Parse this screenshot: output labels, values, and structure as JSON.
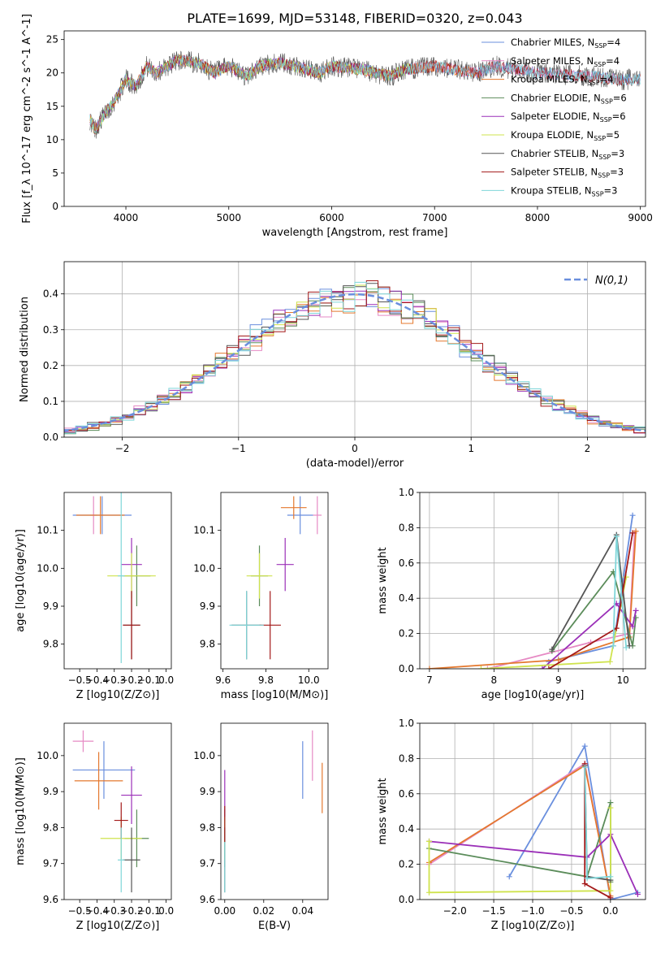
{
  "figure": {
    "title": "PLATE=1699, MJD=53148, FIBERID=0320, z=0.043"
  },
  "models": [
    {
      "name": "Chabrier MILES",
      "nssp": "4",
      "color": "#6a8fde"
    },
    {
      "name": "Salpeter MILES",
      "nssp": "4",
      "color": "#e68ac4"
    },
    {
      "name": "Kroupa MILES",
      "nssp": "4",
      "color": "#e4782e"
    },
    {
      "name": "Chabrier ELODIE",
      "nssp": "6",
      "color": "#5b8c5a"
    },
    {
      "name": "Salpeter ELODIE",
      "nssp": "6",
      "color": "#9b30b8"
    },
    {
      "name": "Kroupa ELODIE",
      "nssp": "5",
      "color": "#cfe34d"
    },
    {
      "name": "Chabrier STELIB",
      "nssp": "3",
      "color": "#555555"
    },
    {
      "name": "Salpeter STELIB",
      "nssp": "3",
      "color": "#a31919"
    },
    {
      "name": "Kroupa STELIB",
      "nssp": "3",
      "color": "#7fd6d9"
    }
  ],
  "chart_data": [
    {
      "id": "spectrum",
      "type": "line",
      "xlabel": "wavelength [Angstrom, rest frame]",
      "ylabel": "Flux [f_λ 10^-17 erg cm^-2 s^-1 A^-1]",
      "xlim": [
        3400,
        9050
      ],
      "ylim": [
        0,
        26.3
      ],
      "xticks": [
        4000,
        5000,
        6000,
        7000,
        8000,
        9000
      ],
      "yticks": [
        0,
        5,
        10,
        15,
        20,
        25
      ],
      "legend_position": "top-right",
      "data_x": [
        3650,
        3700,
        3800,
        3900,
        4000,
        4100,
        4200,
        4300,
        4400,
        4500,
        4700,
        4860,
        5000,
        5175,
        5300,
        5500,
        5890,
        6000,
        6300,
        6563,
        6700,
        7000,
        7200,
        7400,
        7600,
        8000,
        8500,
        8800
      ],
      "data_y": [
        13,
        11.5,
        14,
        16,
        19,
        18,
        21,
        20,
        21,
        22,
        21.5,
        20,
        21,
        19.5,
        21,
        21.5,
        20,
        21,
        20.5,
        19.5,
        20.5,
        21,
        20.5,
        20,
        21,
        20,
        19.5,
        19
      ],
      "model_max_wavelength": [
        9000,
        8800,
        7450,
        6800,
        6800,
        6800,
        9000,
        9000,
        9000
      ]
    },
    {
      "id": "residuals",
      "type": "bar",
      "xlabel": "(data-model)/error",
      "ylabel": "Normed distribution",
      "xlim": [
        -2.5,
        2.5
      ],
      "ylim": [
        0,
        0.49
      ],
      "xticks": [
        -2,
        -1,
        0,
        1,
        2
      ],
      "yticks": [
        0.0,
        0.1,
        0.2,
        0.3,
        0.4
      ],
      "grid": true,
      "reference_curve_label": "N(0,1)",
      "bin_width": 0.1
    },
    {
      "id": "age-vs-Z",
      "type": "scatter",
      "xlabel": "Z [log10(Z/Z⊙)]",
      "ylabel": "age  [log10(age/yr)]",
      "xlim": [
        -0.59,
        0.03
      ],
      "ylim": [
        9.735,
        10.2
      ],
      "xticks": [
        -0.5,
        -0.4,
        -0.3,
        -0.2,
        -0.1,
        0.0
      ],
      "yticks": [
        9.8,
        9.9,
        10.0,
        10.1
      ],
      "points": [
        {
          "x": -0.37,
          "y": 10.14,
          "xerr": 0.17,
          "yerr": 0.05
        },
        {
          "x": -0.42,
          "y": 10.14,
          "xerr": 0.02,
          "yerr": 0.05
        },
        {
          "x": -0.38,
          "y": 10.14,
          "xerr": 0.14,
          "yerr": 0.05
        },
        {
          "x": -0.17,
          "y": 9.98,
          "xerr": 0.08,
          "yerr": 0.08
        },
        {
          "x": -0.2,
          "y": 10.01,
          "xerr": 0.06,
          "yerr": 0.07
        },
        {
          "x": -0.2,
          "y": 9.98,
          "xerr": 0.14,
          "yerr": 0.06
        },
        {
          "x": -0.2,
          "y": 9.85,
          "xerr": 0.05,
          "yerr": 0.09
        },
        {
          "x": -0.2,
          "y": 9.85,
          "xerr": 0.05,
          "yerr": 0.09
        },
        {
          "x": -0.26,
          "y": 9.98,
          "xerr": 0.02,
          "yerr": 0.23
        }
      ]
    },
    {
      "id": "age-vs-mass",
      "type": "scatter",
      "xlabel": "mass [log10(M/M⊙)]",
      "ylabel": "",
      "xlim": [
        9.59,
        10.09
      ],
      "ylim": [
        9.735,
        10.2
      ],
      "xticks": [
        9.6,
        9.8,
        10.0
      ],
      "yticks": [
        9.8,
        9.9,
        10.0,
        10.1
      ],
      "points": [
        {
          "x": 9.96,
          "y": 10.14,
          "xerr": 0.06,
          "yerr": 0.05
        },
        {
          "x": 10.04,
          "y": 10.14,
          "xerr": 0.02,
          "yerr": 0.05
        },
        {
          "x": 9.93,
          "y": 10.16,
          "xerr": 0.06,
          "yerr": 0.03
        },
        {
          "x": 9.77,
          "y": 9.98,
          "xerr": 0.04,
          "yerr": 0.08
        },
        {
          "x": 9.89,
          "y": 10.01,
          "xerr": 0.04,
          "yerr": 0.07
        },
        {
          "x": 9.77,
          "y": 9.98,
          "xerr": 0.06,
          "yerr": 0.06
        },
        {
          "x": 9.71,
          "y": 9.85,
          "xerr": 0.07,
          "yerr": 0.09
        },
        {
          "x": 9.82,
          "y": 9.85,
          "xerr": 0.05,
          "yerr": 0.09
        },
        {
          "x": 9.71,
          "y": 9.85,
          "xerr": 0.08,
          "yerr": 0.09
        }
      ]
    },
    {
      "id": "mass-weight-vs-age",
      "type": "line",
      "xlabel": "age  [log10(age/yr)]",
      "ylabel": "mass weight",
      "xlim": [
        6.85,
        10.35
      ],
      "ylim": [
        0,
        1.0
      ],
      "xticks": [
        7,
        8,
        9,
        10
      ],
      "yticks": [
        0.0,
        0.2,
        0.4,
        0.6,
        0.8,
        1.0
      ],
      "grid": true,
      "series": [
        {
          "model": 0,
          "x": [
            8.85,
            9.85,
            10.15
          ],
          "y": [
            0.04,
            0.13,
            0.87
          ]
        },
        {
          "model": 1,
          "x": [
            7.9,
            9.5,
            10.1,
            10.18
          ],
          "y": [
            0.0,
            0.15,
            0.2,
            0.77
          ]
        },
        {
          "model": 2,
          "x": [
            7.0,
            9.0,
            10.1,
            10.2
          ],
          "y": [
            0.0,
            0.05,
            0.18,
            0.78
          ]
        },
        {
          "model": 3,
          "x": [
            8.9,
            9.85,
            10.15,
            10.2
          ],
          "y": [
            0.1,
            0.55,
            0.13,
            0.29
          ]
        },
        {
          "model": 4,
          "x": [
            8.75,
            9.9,
            10.15,
            10.2
          ],
          "y": [
            0.0,
            0.37,
            0.24,
            0.33
          ]
        },
        {
          "model": 5,
          "x": [
            7.8,
            9.8,
            10.05
          ],
          "y": [
            0.0,
            0.04,
            0.52
          ]
        },
        {
          "model": 6,
          "x": [
            8.9,
            9.9,
            10.1
          ],
          "y": [
            0.11,
            0.76,
            0.13
          ]
        },
        {
          "model": 7,
          "x": [
            8.85,
            9.9,
            10.15
          ],
          "y": [
            0.0,
            0.23,
            0.77
          ]
        },
        {
          "model": 8,
          "x": [
            9.85,
            9.9,
            10.05
          ],
          "y": [
            0.13,
            0.75,
            0.12
          ]
        }
      ]
    },
    {
      "id": "mass-vs-Z",
      "type": "scatter",
      "xlabel": "Z [log10(Z/Z⊙)]",
      "ylabel": "mass [log10(M/M⊙)]",
      "xlim": [
        -0.59,
        0.03
      ],
      "ylim": [
        9.6,
        10.09
      ],
      "xticks": [
        -0.5,
        -0.4,
        -0.3,
        -0.2,
        -0.1,
        0.0
      ],
      "yticks": [
        9.6,
        9.7,
        9.8,
        9.9,
        10.0
      ],
      "points": [
        {
          "x": -0.36,
          "y": 9.96,
          "xerr": 0.18,
          "yerr": 0.08
        },
        {
          "x": -0.48,
          "y": 10.04,
          "xerr": 0.06,
          "yerr": 0.03
        },
        {
          "x": -0.39,
          "y": 9.93,
          "xerr": 0.14,
          "yerr": 0.08
        },
        {
          "x": -0.17,
          "y": 9.77,
          "xerr": 0.07,
          "yerr": 0.08
        },
        {
          "x": -0.2,
          "y": 9.89,
          "xerr": 0.06,
          "yerr": 0.08
        },
        {
          "x": -0.26,
          "y": 9.77,
          "xerr": 0.12,
          "yerr": 0.06
        },
        {
          "x": -0.2,
          "y": 9.71,
          "xerr": 0.05,
          "yerr": 0.09
        },
        {
          "x": -0.26,
          "y": 9.82,
          "xerr": 0.04,
          "yerr": 0.05
        },
        {
          "x": -0.26,
          "y": 9.71,
          "xerr": 0.02,
          "yerr": 0.09
        }
      ]
    },
    {
      "id": "mass-vs-ebv",
      "type": "scatter",
      "xlabel": "E(B-V)",
      "ylabel": "",
      "xlim": [
        -0.002,
        0.053
      ],
      "ylim": [
        9.6,
        10.09
      ],
      "xticks": [
        0.0,
        0.02,
        0.04
      ],
      "yticks": [
        9.6,
        9.7,
        9.8,
        9.9,
        10.0
      ],
      "points": [
        {
          "x": 0.04,
          "y": 9.96,
          "xerr": 0,
          "yerr": 0.08
        },
        {
          "x": 0.045,
          "y": 10.0,
          "xerr": 0,
          "yerr": 0.07
        },
        {
          "x": 0.05,
          "y": 9.91,
          "xerr": 0,
          "yerr": 0.07
        },
        {
          "x": 0.0,
          "y": 9.77,
          "xerr": 0,
          "yerr": 0.08
        },
        {
          "x": 0.0,
          "y": 9.89,
          "xerr": 0,
          "yerr": 0.07
        },
        {
          "x": 0.0,
          "y": 9.77,
          "xerr": 0,
          "yerr": 0.06
        },
        {
          "x": 0.0,
          "y": 9.71,
          "xerr": 0,
          "yerr": 0.09
        },
        {
          "x": 0.0,
          "y": 9.81,
          "xerr": 0,
          "yerr": 0.05
        },
        {
          "x": 0.0,
          "y": 9.69,
          "xerr": 0,
          "yerr": 0.07
        }
      ]
    },
    {
      "id": "mass-weight-vs-Z",
      "type": "line",
      "xlabel": "Z [log10(Z/Z⊙)]",
      "ylabel": "mass weight",
      "xlim": [
        -2.45,
        0.45
      ],
      "ylim": [
        0,
        1.0
      ],
      "xticks": [
        -2.0,
        -1.5,
        -1.0,
        -0.5,
        0.0
      ],
      "yticks": [
        0.0,
        0.2,
        0.4,
        0.6,
        0.8,
        1.0
      ],
      "grid": true,
      "series": [
        {
          "model": 0,
          "x": [
            -1.3,
            -0.33,
            0.0,
            0.35
          ],
          "y": [
            0.13,
            0.87,
            0.0,
            0.04
          ]
        },
        {
          "model": 1,
          "x": [
            -2.33,
            -0.33,
            0.0
          ],
          "y": [
            0.2,
            0.77,
            0.02
          ]
        },
        {
          "model": 2,
          "x": [
            -2.33,
            -0.33,
            0.0
          ],
          "y": [
            0.21,
            0.76,
            0.02
          ]
        },
        {
          "model": 3,
          "x": [
            -2.33,
            -0.3,
            0.0,
            0.0
          ],
          "y": [
            0.29,
            0.13,
            0.55,
            0.1
          ]
        },
        {
          "model": 4,
          "x": [
            -2.33,
            -0.3,
            0.0,
            0.35
          ],
          "y": [
            0.33,
            0.24,
            0.37,
            0.03
          ]
        },
        {
          "model": 5,
          "x": [
            -2.33,
            -2.33,
            0.0,
            0.0
          ],
          "y": [
            0.33,
            0.04,
            0.05,
            0.52
          ]
        },
        {
          "model": 6,
          "x": [
            -0.33,
            -0.3,
            0.0
          ],
          "y": [
            0.76,
            0.13,
            0.11
          ]
        },
        {
          "model": 7,
          "x": [
            -0.33,
            -0.33,
            0.0
          ],
          "y": [
            0.77,
            0.09,
            0.01
          ]
        },
        {
          "model": 8,
          "x": [
            -0.33,
            -0.3,
            0.0
          ],
          "y": [
            0.75,
            0.12,
            0.13
          ]
        }
      ]
    }
  ]
}
